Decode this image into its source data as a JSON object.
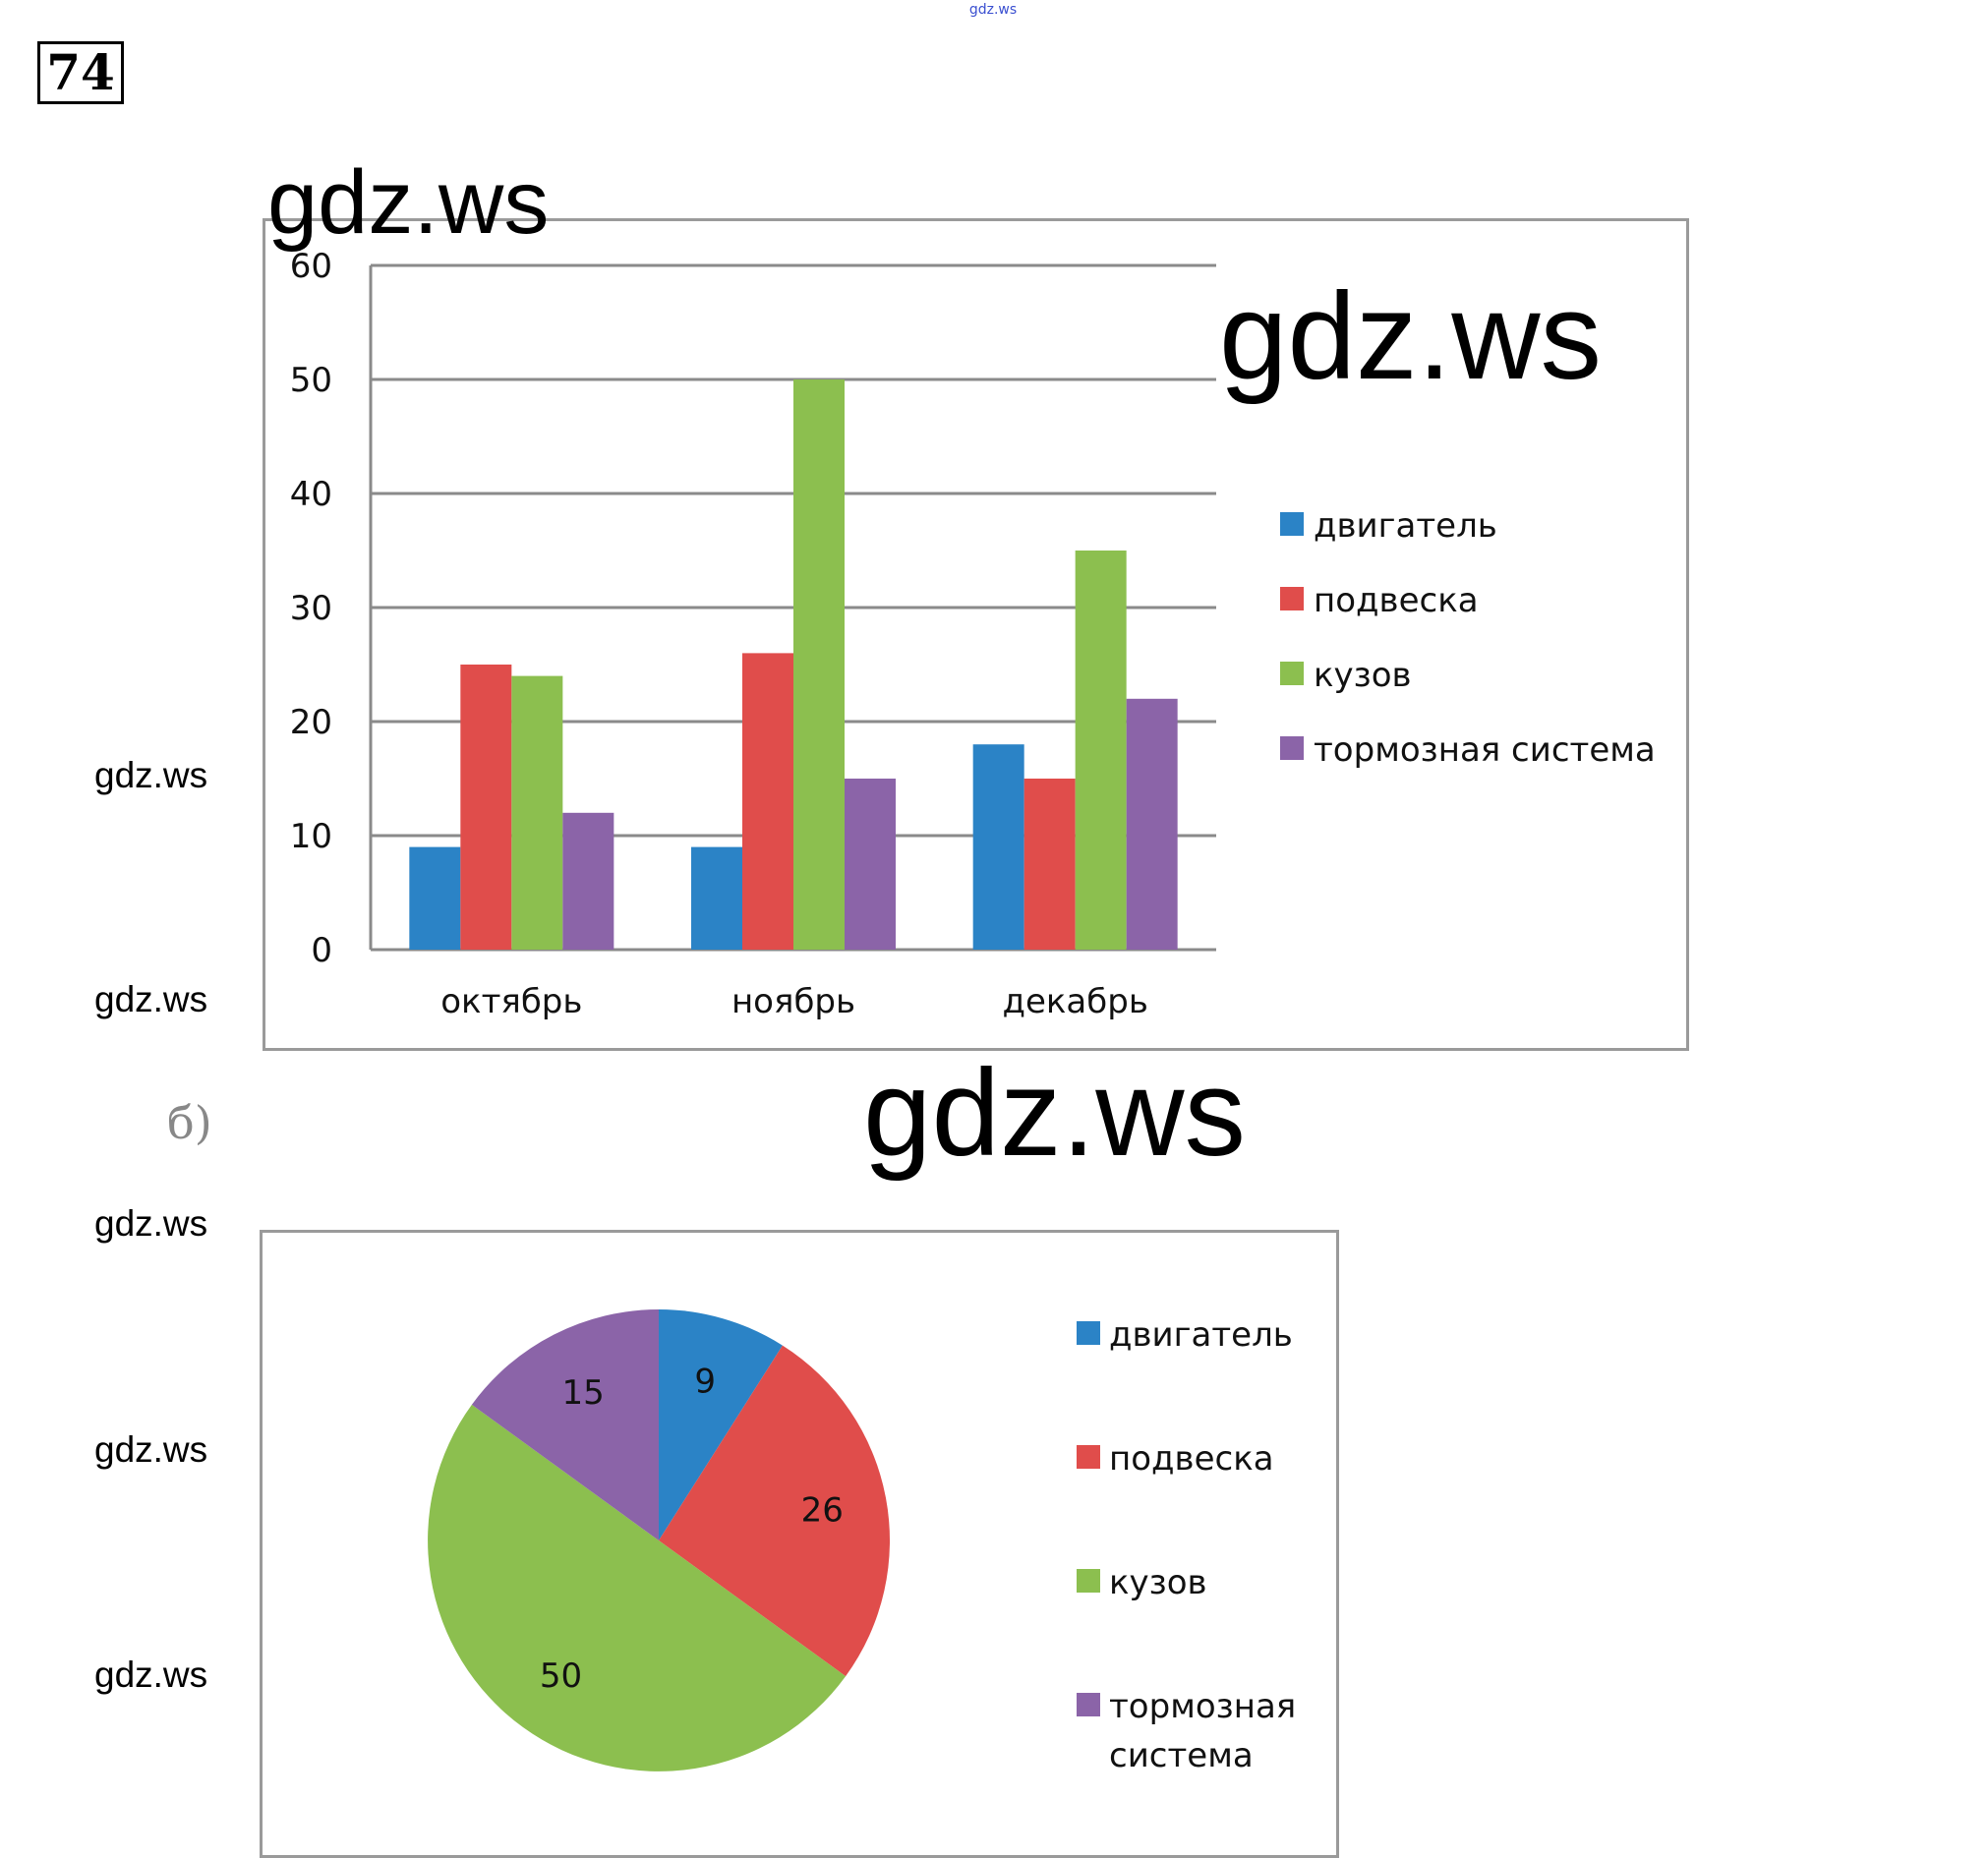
{
  "header": {
    "problem_number": "74",
    "top_mark": "gdz.ws"
  },
  "watermarks": {
    "big_1": "gdz.ws",
    "big_2": "gdz.ws",
    "big_3": "gdz.ws",
    "small": [
      "gdz.ws",
      "gdz.ws",
      "gdz.ws",
      "gdz.ws",
      "gdz.ws"
    ]
  },
  "part_b_label": "б)",
  "colors": {
    "engine": "#2b83c6",
    "suspension": "#e04d4b",
    "body": "#8cbf4f",
    "brakes": "#8b64a8",
    "gridline": "#8a8a8a",
    "frame": "#9a9a9a"
  },
  "chart_data": [
    {
      "type": "bar",
      "categories": [
        "октябрь",
        "ноябрь",
        "декабрь"
      ],
      "series": [
        {
          "name": "двигатель",
          "values": [
            9,
            9,
            18
          ]
        },
        {
          "name": "подвеска",
          "values": [
            25,
            26,
            15
          ]
        },
        {
          "name": "кузов",
          "values": [
            24,
            50,
            35
          ]
        },
        {
          "name": "тормозная система",
          "values": [
            12,
            15,
            22
          ]
        }
      ],
      "yticks": [
        "0",
        "10",
        "20",
        "30",
        "40",
        "50",
        "60"
      ],
      "ylim": [
        0,
        60
      ],
      "grid": true,
      "legend": "right",
      "title": "",
      "xlabel": "",
      "ylabel": ""
    },
    {
      "type": "pie",
      "labels": [
        "двигатель",
        "подвеска",
        "кузов",
        "тормозная система"
      ],
      "legend_lines": [
        [
          "двигатель"
        ],
        [
          "подвеска"
        ],
        [
          "кузов"
        ],
        [
          "тормозная",
          "система"
        ]
      ],
      "values": [
        9,
        26,
        50,
        15
      ],
      "data_labels": [
        "9",
        "26",
        "50",
        "15"
      ],
      "legend": "right",
      "title": ""
    }
  ]
}
